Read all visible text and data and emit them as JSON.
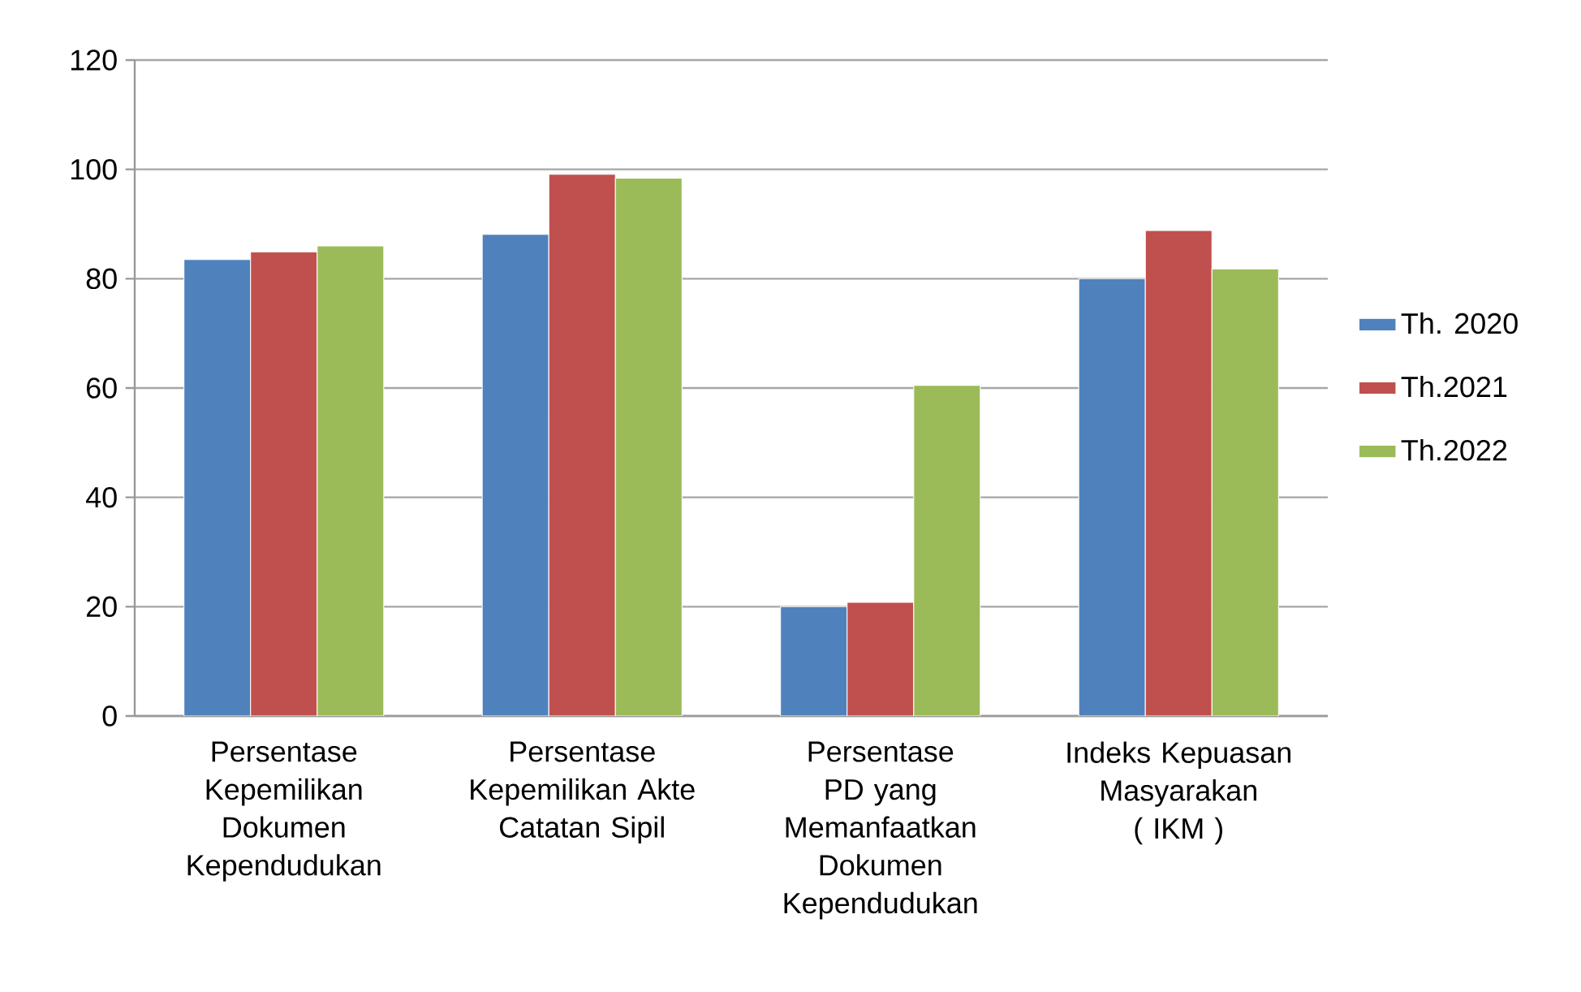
{
  "chart_data": {
    "type": "bar",
    "categories": [
      "Persentase Kepemilikan Dokumen Kependudukan",
      "Persentase Kepemilikan Akte Catatan Sipil",
      "Persentase PD yang Memanfaatkan Dokumen Kependudukan",
      "Indeks Kepuasan Masyarakan ( IKM )"
    ],
    "series": [
      {
        "name": "Th. 2020",
        "color": "#4f81bd",
        "values": [
          83.5,
          88.1,
          20,
          80
        ]
      },
      {
        "name": "Th.2021",
        "color": "#c0504d",
        "values": [
          84.9,
          99.1,
          20.8,
          88.8
        ]
      },
      {
        "name": "Th.2022",
        "color": "#9bbb59",
        "values": [
          86,
          98.4,
          60.5,
          81.8
        ]
      }
    ],
    "ylim": [
      0,
      120
    ],
    "yticks": [
      0,
      20,
      40,
      60,
      80,
      100,
      120
    ],
    "grid": "y",
    "legend": "right"
  }
}
